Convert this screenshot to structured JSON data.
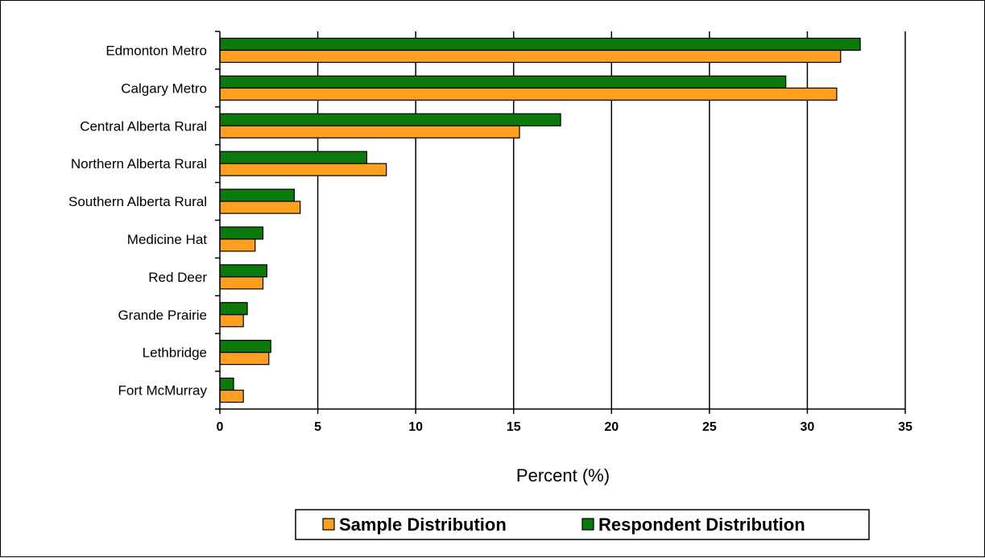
{
  "chart_data": {
    "type": "bar",
    "orientation": "horizontal",
    "categories": [
      "Edmonton Metro",
      "Calgary Metro",
      "Central Alberta Rural",
      "Northern Alberta Rural",
      "Southern Alberta Rural",
      "Medicine Hat",
      "Red Deer",
      "Grande Prairie",
      "Lethbridge",
      "Fort McMurray"
    ],
    "series": [
      {
        "name": "Respondent Distribution",
        "color": "#0b7a0b",
        "values": [
          32.7,
          28.9,
          17.4,
          7.5,
          3.8,
          2.2,
          2.4,
          1.4,
          2.6,
          0.7
        ]
      },
      {
        "name": "Sample Distribution",
        "color": "#ff9f1f",
        "values": [
          31.7,
          31.5,
          15.3,
          8.5,
          4.1,
          1.8,
          2.2,
          1.2,
          2.5,
          1.2
        ]
      }
    ],
    "xlabel": "Percent (%)",
    "xlim": [
      0,
      35
    ],
    "xticks": [
      0,
      5,
      10,
      15,
      20,
      25,
      30,
      35
    ],
    "grid": "vertical",
    "legend_position": "bottom",
    "legend_order": [
      "Sample Distribution",
      "Respondent Distribution"
    ]
  }
}
